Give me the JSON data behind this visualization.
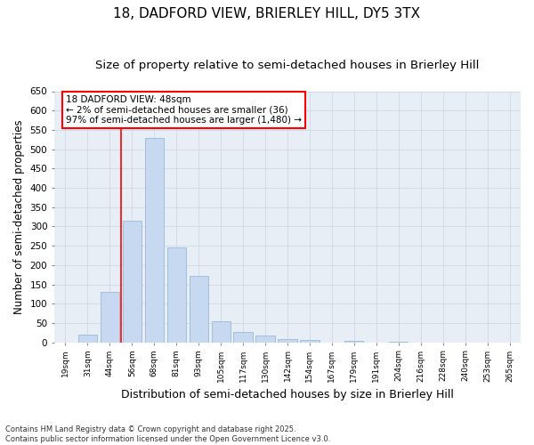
{
  "title1": "18, DADFORD VIEW, BRIERLEY HILL, DY5 3TX",
  "title2": "Size of property relative to semi-detached houses in Brierley Hill",
  "xlabel": "Distribution of semi-detached houses by size in Brierley Hill",
  "ylabel": "Number of semi-detached properties",
  "categories": [
    "19sqm",
    "31sqm",
    "44sqm",
    "56sqm",
    "68sqm",
    "81sqm",
    "93sqm",
    "105sqm",
    "117sqm",
    "130sqm",
    "142sqm",
    "154sqm",
    "167sqm",
    "179sqm",
    "191sqm",
    "204sqm",
    "216sqm",
    "228sqm",
    "240sqm",
    "253sqm",
    "265sqm"
  ],
  "values": [
    0,
    20,
    130,
    315,
    530,
    245,
    172,
    55,
    27,
    17,
    8,
    5,
    0,
    3,
    0,
    1,
    0,
    0,
    0,
    0,
    0
  ],
  "bar_color": "#c6d9f1",
  "bar_edge_color": "#9ab8d8",
  "vline_pos": 2.5,
  "marker_label_line1": "18 DADFORD VIEW: 48sqm",
  "marker_label_line2": "← 2% of semi-detached houses are smaller (36)",
  "marker_label_line3": "97% of semi-detached houses are larger (1,480) →",
  "ylim": [
    0,
    650
  ],
  "yticks": [
    0,
    50,
    100,
    150,
    200,
    250,
    300,
    350,
    400,
    450,
    500,
    550,
    600,
    650
  ],
  "grid_color": "#ccd9e8",
  "bg_color": "#e8eef5",
  "footer": "Contains HM Land Registry data © Crown copyright and database right 2025.\nContains public sector information licensed under the Open Government Licence v3.0.",
  "title1_fontsize": 11,
  "title2_fontsize": 9.5,
  "xlabel_fontsize": 9,
  "ylabel_fontsize": 8.5,
  "annotation_fontsize": 7.5
}
